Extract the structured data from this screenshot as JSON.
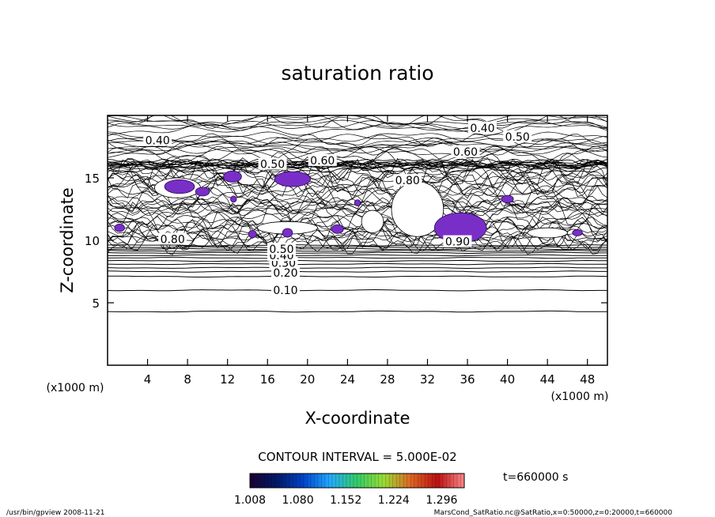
{
  "chart_data": {
    "type": "contour",
    "title": "saturation ratio",
    "xlabel": "X-coordinate",
    "ylabel": "Z-coordinate",
    "x_unit": "(x1000 m)",
    "z_unit": "(x1000 m)",
    "xlim": [
      0,
      50
    ],
    "ylim": [
      0,
      20
    ],
    "xticks": [
      "4",
      "8",
      "12",
      "16",
      "20",
      "24",
      "28",
      "32",
      "36",
      "40",
      "44",
      "48"
    ],
    "yticks": [
      "5",
      "10",
      "15"
    ],
    "xtick_values": [
      4,
      8,
      12,
      16,
      20,
      24,
      28,
      32,
      36,
      40,
      44,
      48
    ],
    "ytick_values": [
      5,
      10,
      15
    ],
    "contour_interval": "CONTOUR INTERVAL = 5.000E-02",
    "contour_labels": [
      {
        "text": "0.10",
        "x": 17.8,
        "z": 6.0
      },
      {
        "text": "0.20",
        "x": 17.8,
        "z": 7.4
      },
      {
        "text": "0.30",
        "x": 17.6,
        "z": 8.2
      },
      {
        "text": "0.40",
        "x": 17.4,
        "z": 8.8
      },
      {
        "text": "0.50",
        "x": 17.4,
        "z": 9.3
      },
      {
        "text": "0.40",
        "x": 5.0,
        "z": 18.0
      },
      {
        "text": "0.50",
        "x": 16.5,
        "z": 16.1
      },
      {
        "text": "0.60",
        "x": 21.5,
        "z": 16.4
      },
      {
        "text": "0.40",
        "x": 37.5,
        "z": 19.0
      },
      {
        "text": "0.50",
        "x": 41.0,
        "z": 18.3
      },
      {
        "text": "0.60",
        "x": 35.8,
        "z": 17.1
      },
      {
        "text": "0.80",
        "x": 30.0,
        "z": 14.8
      },
      {
        "text": "0.80",
        "x": 6.5,
        "z": 10.1
      },
      {
        "text": "0.90",
        "x": 35.0,
        "z": 9.9
      }
    ],
    "colorbar": {
      "labels": [
        "1.008",
        "1.080",
        "1.152",
        "1.224",
        "1.296"
      ],
      "range": [
        1.008,
        1.33
      ],
      "colors": [
        "#1a0033",
        "#001a66",
        "#0044cc",
        "#22aaff",
        "#33cc66",
        "#99dd33",
        "#dd6622",
        "#bb1111",
        "#ff8888"
      ]
    },
    "time_label": "t=660000 s",
    "footer_left": "/usr/bin/gpview   2008-11-21",
    "footer_right": "MarsCond_SatRatio.nc@SatRatio,x=0:50000,z=0:20000,t=660000"
  }
}
